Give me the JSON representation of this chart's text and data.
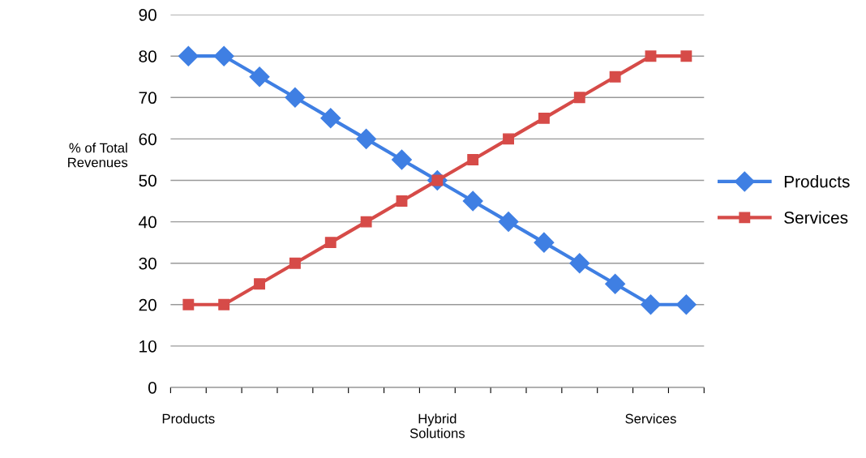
{
  "chart_data": {
    "type": "line",
    "ylabel": "% of Total\nRevenues",
    "categories": [
      "Products",
      null,
      null,
      null,
      null,
      null,
      null,
      "Hybrid\nSolutions",
      null,
      null,
      null,
      null,
      null,
      "Services",
      null
    ],
    "series": [
      {
        "name": "Products",
        "color": "#3f7fe3",
        "marker": "diamond",
        "values": [
          80,
          80,
          75,
          70,
          65,
          60,
          55,
          50,
          45,
          40,
          35,
          30,
          25,
          20,
          20
        ]
      },
      {
        "name": "Services",
        "color": "#d64b48",
        "marker": "square",
        "values": [
          20,
          20,
          25,
          30,
          35,
          40,
          45,
          50,
          55,
          60,
          65,
          70,
          75,
          80,
          80
        ]
      }
    ],
    "ylim": [
      0,
      90
    ],
    "yticks": [
      0,
      10,
      20,
      30,
      40,
      50,
      60,
      70,
      80,
      90
    ],
    "grid": "y",
    "legend": "right",
    "line_style": "solid"
  }
}
